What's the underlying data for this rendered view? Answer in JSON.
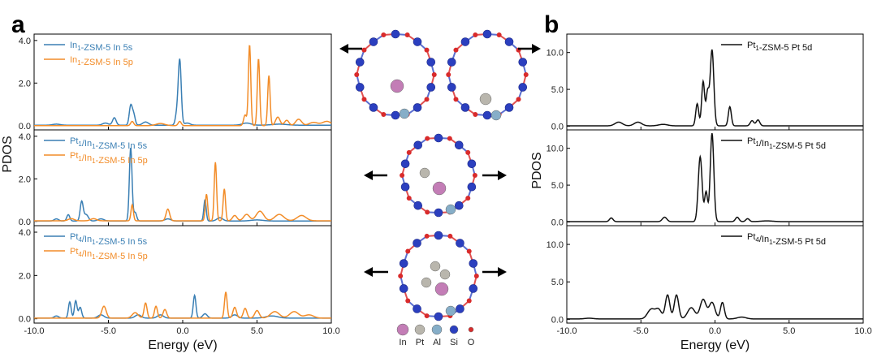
{
  "panel_labels": [
    "a",
    "b"
  ],
  "colors": {
    "s_line": "#3a7fb4",
    "p_line": "#f28c28",
    "d_line": "#111111",
    "In": "#c37db6",
    "Pt": "#b9b6ad",
    "Al": "#86aec8",
    "Si": "#2b3fbf",
    "O": "#d92b2b",
    "bond_si": "#5b6fd0",
    "bond_o": "#e05050"
  },
  "element_legend": [
    {
      "symbol": "In",
      "color_key": "In"
    },
    {
      "symbol": "Pt",
      "color_key": "Pt"
    },
    {
      "symbol": "Al",
      "color_key": "Al"
    },
    {
      "symbol": "Si",
      "color_key": "Si"
    },
    {
      "symbol": "O",
      "color_key": "O"
    }
  ],
  "chart_data": [
    {
      "type": "line",
      "panel": "a",
      "xlabel": "Energy (eV)",
      "ylabel": "PDOS",
      "xlim": [
        -10,
        10
      ],
      "x_ticks": [
        "-10.0",
        "-5.0",
        "0.0",
        "5.0",
        "10.0"
      ],
      "subplots": [
        {
          "ylim": [
            -0.2,
            4.3
          ],
          "y_ticks": [
            "0.0",
            "2.0",
            "4.0"
          ],
          "series": [
            {
              "name": "In1-ZSM-5 In 5s",
              "legend_main": "In",
              "legend_sub": "1",
              "legend_rest": "-ZSM-5 In 5s",
              "color_key": "s_line",
              "baseline": 0.02,
              "peaks": [
                [
                  -8.5,
                  0.05,
                  0.25
                ],
                [
                  -5.2,
                  0.1,
                  0.2
                ],
                [
                  -4.6,
                  0.35,
                  0.12
                ],
                [
                  -3.5,
                  0.9,
                  0.1
                ],
                [
                  -3.3,
                  0.5,
                  0.1
                ],
                [
                  -2.5,
                  0.15,
                  0.2
                ],
                [
                  -0.2,
                  3.05,
                  0.1
                ],
                [
                  -0.4,
                  0.5,
                  0.1
                ],
                [
                  0.3,
                  0.1,
                  0.2
                ],
                [
                  4.3,
                  0.1,
                  0.3
                ],
                [
                  6.5,
                  0.05,
                  0.5
                ]
              ]
            },
            {
              "name": "In1-ZSM-5 In 5p",
              "legend_main": "In",
              "legend_sub": "1",
              "legend_rest": "-ZSM-5 In 5p",
              "color_key": "p_line",
              "baseline": 0.0,
              "peaks": [
                [
                  -3.4,
                  0.2,
                  0.1
                ],
                [
                  -1.5,
                  0.1,
                  0.3
                ],
                [
                  -0.2,
                  0.2,
                  0.1
                ],
                [
                  4.2,
                  0.5,
                  0.1
                ],
                [
                  4.5,
                  3.8,
                  0.08
                ],
                [
                  5.1,
                  3.15,
                  0.08
                ],
                [
                  5.8,
                  2.35,
                  0.08
                ],
                [
                  6.4,
                  0.4,
                  0.15
                ],
                [
                  7.0,
                  0.25,
                  0.15
                ],
                [
                  7.8,
                  0.3,
                  0.2
                ],
                [
                  8.8,
                  0.15,
                  0.3
                ],
                [
                  9.7,
                  0.2,
                  0.3
                ]
              ]
            }
          ]
        },
        {
          "ylim": [
            -0.2,
            4.3
          ],
          "y_ticks": [
            "0.0",
            "2.0",
            "4.0"
          ],
          "series": [
            {
              "name": "Pt1/In1-ZSM-5 In 5s",
              "legend_main": "Pt",
              "legend_sub": "1",
              "legend_rest": "/In",
              "legend_sub2": "1",
              "legend_rest2": "-ZSM-5 In 5s",
              "color_key": "s_line",
              "baseline": 0.02,
              "peaks": [
                [
                  -8.5,
                  0.1,
                  0.15
                ],
                [
                  -7.7,
                  0.3,
                  0.1
                ],
                [
                  -6.8,
                  0.9,
                  0.1
                ],
                [
                  -6.5,
                  0.3,
                  0.15
                ],
                [
                  -5.5,
                  0.1,
                  0.2
                ],
                [
                  -3.5,
                  3.45,
                  0.09
                ],
                [
                  -3.2,
                  0.4,
                  0.1
                ],
                [
                  -1.0,
                  0.1,
                  0.2
                ],
                [
                  1.5,
                  1.0,
                  0.08
                ],
                [
                  2.5,
                  0.15,
                  0.2
                ],
                [
                  5.0,
                  0.05,
                  0.4
                ]
              ]
            },
            {
              "name": "Pt1/In1-ZSM-5 In 5p",
              "legend_main": "Pt",
              "legend_sub": "1",
              "legend_rest": "/In",
              "legend_sub2": "1",
              "legend_rest2": "-ZSM-5 In 5p",
              "color_key": "p_line",
              "baseline": 0.03,
              "peaks": [
                [
                  -7.5,
                  0.1,
                  0.2
                ],
                [
                  -6.0,
                  0.1,
                  0.2
                ],
                [
                  -3.4,
                  0.75,
                  0.08
                ],
                [
                  -1.0,
                  0.55,
                  0.12
                ],
                [
                  1.6,
                  1.25,
                  0.08
                ],
                [
                  2.2,
                  2.75,
                  0.08
                ],
                [
                  2.8,
                  1.5,
                  0.08
                ],
                [
                  3.5,
                  0.25,
                  0.15
                ],
                [
                  4.3,
                  0.3,
                  0.2
                ],
                [
                  5.2,
                  0.45,
                  0.25
                ],
                [
                  6.5,
                  0.3,
                  0.3
                ],
                [
                  8.0,
                  0.25,
                  0.3
                ]
              ]
            }
          ]
        },
        {
          "ylim": [
            -0.2,
            4.3
          ],
          "y_ticks": [
            "0.0",
            "2.0",
            "4.0"
          ],
          "series": [
            {
              "name": "Pt4/In1-ZSM-5 In 5s",
              "legend_main": "Pt",
              "legend_sub": "4",
              "legend_rest": "/In",
              "legend_sub2": "1",
              "legend_rest2": "-ZSM-5 In 5s",
              "color_key": "s_line",
              "baseline": 0.03,
              "peaks": [
                [
                  -8.5,
                  0.1,
                  0.15
                ],
                [
                  -7.6,
                  0.75,
                  0.09
                ],
                [
                  -7.2,
                  0.8,
                  0.09
                ],
                [
                  -6.9,
                  0.5,
                  0.1
                ],
                [
                  -5.5,
                  0.15,
                  0.2
                ],
                [
                  -3.0,
                  0.15,
                  0.2
                ],
                [
                  -1.5,
                  0.15,
                  0.2
                ],
                [
                  0.8,
                  1.05,
                  0.09
                ],
                [
                  1.5,
                  0.2,
                  0.15
                ],
                [
                  3.5,
                  0.15,
                  0.2
                ],
                [
                  6.0,
                  0.1,
                  0.4
                ]
              ]
            },
            {
              "name": "Pt4/In1-ZSM-5 In 5p",
              "legend_main": "Pt",
              "legend_sub": "4",
              "legend_rest": "/In",
              "legend_sub2": "1",
              "legend_rest2": "-ZSM-5 In 5p",
              "color_key": "p_line",
              "baseline": 0.03,
              "peaks": [
                [
                  -5.3,
                  0.55,
                  0.15
                ],
                [
                  -3.2,
                  0.25,
                  0.2
                ],
                [
                  -2.5,
                  0.7,
                  0.1
                ],
                [
                  -1.8,
                  0.55,
                  0.1
                ],
                [
                  -1.2,
                  0.4,
                  0.12
                ],
                [
                  2.9,
                  1.2,
                  0.09
                ],
                [
                  3.5,
                  0.5,
                  0.12
                ],
                [
                  4.2,
                  0.45,
                  0.12
                ],
                [
                  5.0,
                  0.35,
                  0.15
                ],
                [
                  6.2,
                  0.3,
                  0.3
                ],
                [
                  7.5,
                  0.3,
                  0.3
                ],
                [
                  8.5,
                  0.15,
                  0.3
                ]
              ]
            }
          ]
        }
      ]
    },
    {
      "type": "line",
      "panel": "b",
      "xlabel": "Energy (eV)",
      "ylabel": "PDOS",
      "xlim": [
        -10,
        10
      ],
      "x_ticks": [
        "-10.0",
        "-5.0",
        "0.0",
        "5.0",
        "10.0"
      ],
      "subplots": [
        {
          "ylim": [
            -0.5,
            12.5
          ],
          "y_ticks": [
            "0.0",
            "5.0",
            "10.0"
          ],
          "series": [
            {
              "name": "Pt1-ZSM-5 Pt 5d",
              "legend_main": "Pt",
              "legend_sub": "1",
              "legend_rest": "-ZSM-5 Pt 5d",
              "color_key": "d_line",
              "baseline": 0.05,
              "peaks": [
                [
                  -6.5,
                  0.5,
                  0.25
                ],
                [
                  -5.2,
                  0.5,
                  0.25
                ],
                [
                  -3.5,
                  0.2,
                  0.3
                ],
                [
                  -1.2,
                  3.0,
                  0.1
                ],
                [
                  -0.8,
                  6.0,
                  0.1
                ],
                [
                  -0.5,
                  4.5,
                  0.1
                ],
                [
                  -0.2,
                  10.3,
                  0.12
                ],
                [
                  1.0,
                  2.6,
                  0.1
                ],
                [
                  2.5,
                  0.7,
                  0.12
                ],
                [
                  2.9,
                  0.8,
                  0.12
                ]
              ]
            }
          ]
        },
        {
          "ylim": [
            -0.5,
            12.5
          ],
          "y_ticks": [
            "0.0",
            "5.0",
            "10.0"
          ],
          "series": [
            {
              "name": "Pt1/In1-ZSM-5 Pt 5d",
              "legend_main": "Pt",
              "legend_sub": "1",
              "legend_rest": "/In",
              "legend_sub2": "1",
              "legend_rest2": "-ZSM-5 Pt 5d",
              "color_key": "d_line",
              "baseline": 0.05,
              "peaks": [
                [
                  -7.0,
                  0.5,
                  0.12
                ],
                [
                  -3.4,
                  0.6,
                  0.15
                ],
                [
                  -1.0,
                  8.8,
                  0.13
                ],
                [
                  -0.6,
                  4.0,
                  0.1
                ],
                [
                  -0.2,
                  12.0,
                  0.12
                ],
                [
                  1.5,
                  0.6,
                  0.12
                ],
                [
                  2.2,
                  0.4,
                  0.12
                ],
                [
                  3.5,
                  0.1,
                  0.4
                ]
              ]
            }
          ]
        },
        {
          "ylim": [
            -0.5,
            12.5
          ],
          "y_ticks": [
            "0.0",
            "5.0",
            "10.0"
          ],
          "series": [
            {
              "name": "Pt4/In1-ZSM-5 Pt 5d",
              "legend_main": "Pt",
              "legend_sub": "4",
              "legend_rest": "/In",
              "legend_sub2": "1",
              "legend_rest2": "-ZSM-5 Pt 5d",
              "color_key": "d_line",
              "baseline": 0.05,
              "peaks": [
                [
                  -8.5,
                  0.1,
                  0.3
                ],
                [
                  -4.3,
                  1.3,
                  0.25
                ],
                [
                  -3.8,
                  1.2,
                  0.2
                ],
                [
                  -3.2,
                  3.2,
                  0.15
                ],
                [
                  -2.6,
                  3.2,
                  0.15
                ],
                [
                  -1.6,
                  1.5,
                  0.25
                ],
                [
                  -0.8,
                  2.6,
                  0.2
                ],
                [
                  -0.2,
                  2.2,
                  0.2
                ],
                [
                  0.5,
                  2.2,
                  0.13
                ],
                [
                  1.8,
                  0.25,
                  0.3
                ]
              ]
            }
          ]
        }
      ]
    }
  ]
}
